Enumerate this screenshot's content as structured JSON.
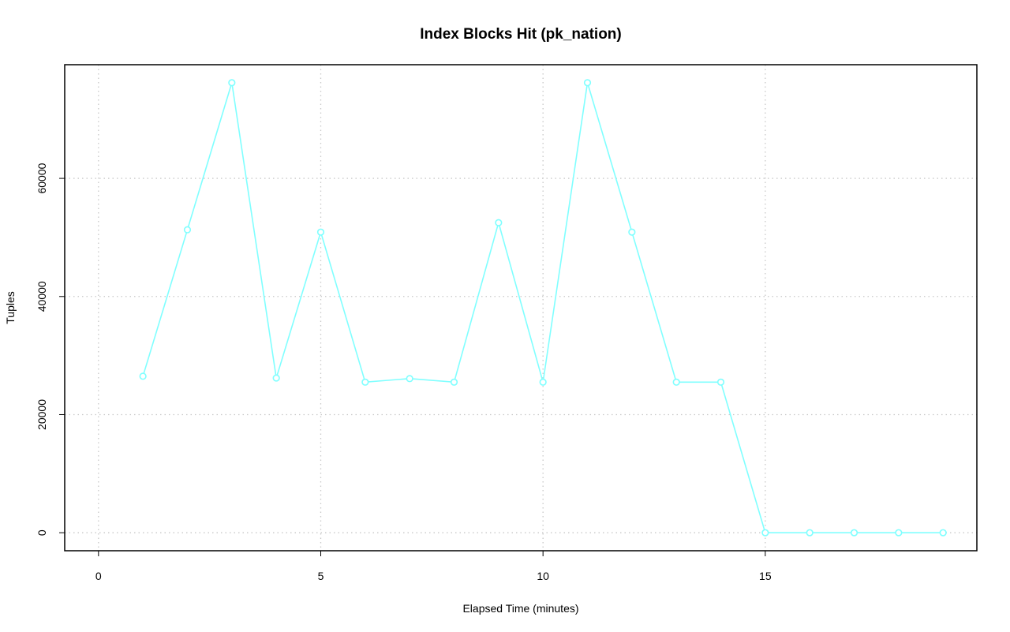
{
  "chart_data": {
    "type": "line",
    "title": "Index Blocks Hit (pk_nation)",
    "x_label": "Elapsed Time (minutes)",
    "y_label": "Tuples",
    "x": [
      1,
      2,
      3,
      4,
      5,
      6,
      7,
      8,
      9,
      10,
      11,
      12,
      13,
      14,
      15,
      16,
      17,
      18,
      19
    ],
    "series": [
      {
        "color": "#80ffff",
        "values": [
          26500,
          51300,
          76200,
          26200,
          50900,
          25500,
          26100,
          25500,
          52500,
          25500,
          76200,
          50900,
          25500,
          25500,
          0,
          0,
          0,
          0,
          0
        ]
      }
    ],
    "xlim": [
      -0.76,
      19.76
    ],
    "xticks": [
      0,
      5,
      10,
      15
    ],
    "ylim": [
      -3048,
      79248
    ],
    "yticks": [
      0,
      20000,
      40000,
      60000
    ],
    "grid": true,
    "markers": "open-circle"
  }
}
